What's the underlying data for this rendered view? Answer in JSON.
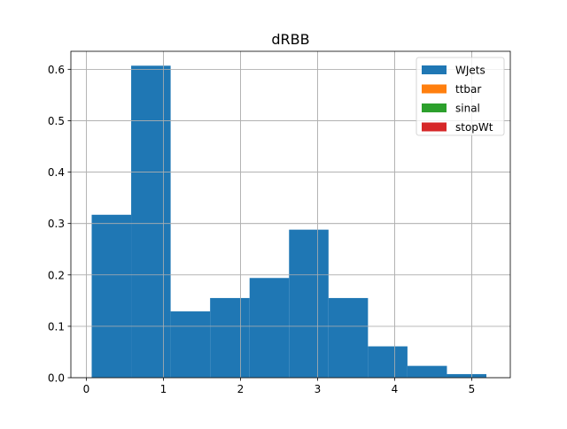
{
  "chart_data": {
    "type": "bar",
    "title": "dRBB",
    "xlabel": "",
    "ylabel": "",
    "xlim": [
      -0.2,
      5.5
    ],
    "ylim": [
      0,
      0.635
    ],
    "xticks": [
      0,
      1,
      2,
      3,
      4,
      5
    ],
    "xtick_labels": [
      "0",
      "1",
      "2",
      "3",
      "4",
      "5"
    ],
    "yticks": [
      0.0,
      0.1,
      0.2,
      0.3,
      0.4,
      0.5,
      0.6
    ],
    "ytick_labels": [
      "0.0",
      "0.1",
      "0.2",
      "0.3",
      "0.4",
      "0.5",
      "0.6"
    ],
    "grid": true,
    "legend_position": "top-right",
    "bin_edges": [
      0.07,
      0.582,
      1.094,
      1.606,
      2.118,
      2.63,
      3.142,
      3.654,
      4.166,
      4.678,
      5.19
    ],
    "series": [
      {
        "name": "WJets",
        "color": "#1f77b4",
        "values": [
          0.317,
          0.607,
          0.129,
          0.155,
          0.194,
          0.288,
          0.155,
          0.061,
          0.023,
          0.007
        ]
      },
      {
        "name": "ttbar",
        "color": "#ff7f0e",
        "values": []
      },
      {
        "name": "sinal",
        "color": "#2ca02c",
        "values": []
      },
      {
        "name": "stopWt",
        "color": "#d62728",
        "values": []
      }
    ]
  }
}
